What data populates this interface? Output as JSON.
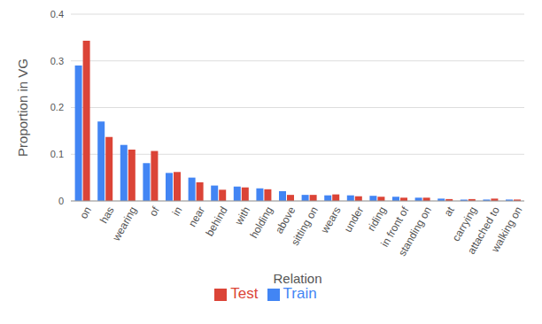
{
  "chart_data": {
    "type": "bar",
    "categories": [
      "on",
      "has",
      "wearing",
      "of",
      "in",
      "near",
      "behind",
      "with",
      "holding",
      "above",
      "sitting on",
      "wears",
      "under",
      "riding",
      "in front of",
      "standing on",
      "at",
      "carrying",
      "attached to",
      "walking on"
    ],
    "series": [
      {
        "name": "Train",
        "color": "#4285f4",
        "values": [
          0.29,
          0.17,
          0.12,
          0.081,
          0.06,
          0.05,
          0.033,
          0.031,
          0.027,
          0.021,
          0.013,
          0.012,
          0.012,
          0.011,
          0.009,
          0.007,
          0.005,
          0.003,
          0.003,
          0.003
        ]
      },
      {
        "name": "Test",
        "color": "#db4437",
        "values": [
          0.343,
          0.137,
          0.11,
          0.107,
          0.062,
          0.04,
          0.024,
          0.029,
          0.025,
          0.013,
          0.013,
          0.014,
          0.01,
          0.009,
          0.007,
          0.007,
          0.004,
          0.004,
          0.005,
          0.003
        ]
      }
    ],
    "x_label": "Relation",
    "y_label": "Proportion in VG",
    "ylim": [
      0,
      0.4
    ],
    "yticks": [
      0,
      0.1,
      0.2,
      0.3,
      0.4
    ],
    "grid": true,
    "legend": "bottom"
  }
}
